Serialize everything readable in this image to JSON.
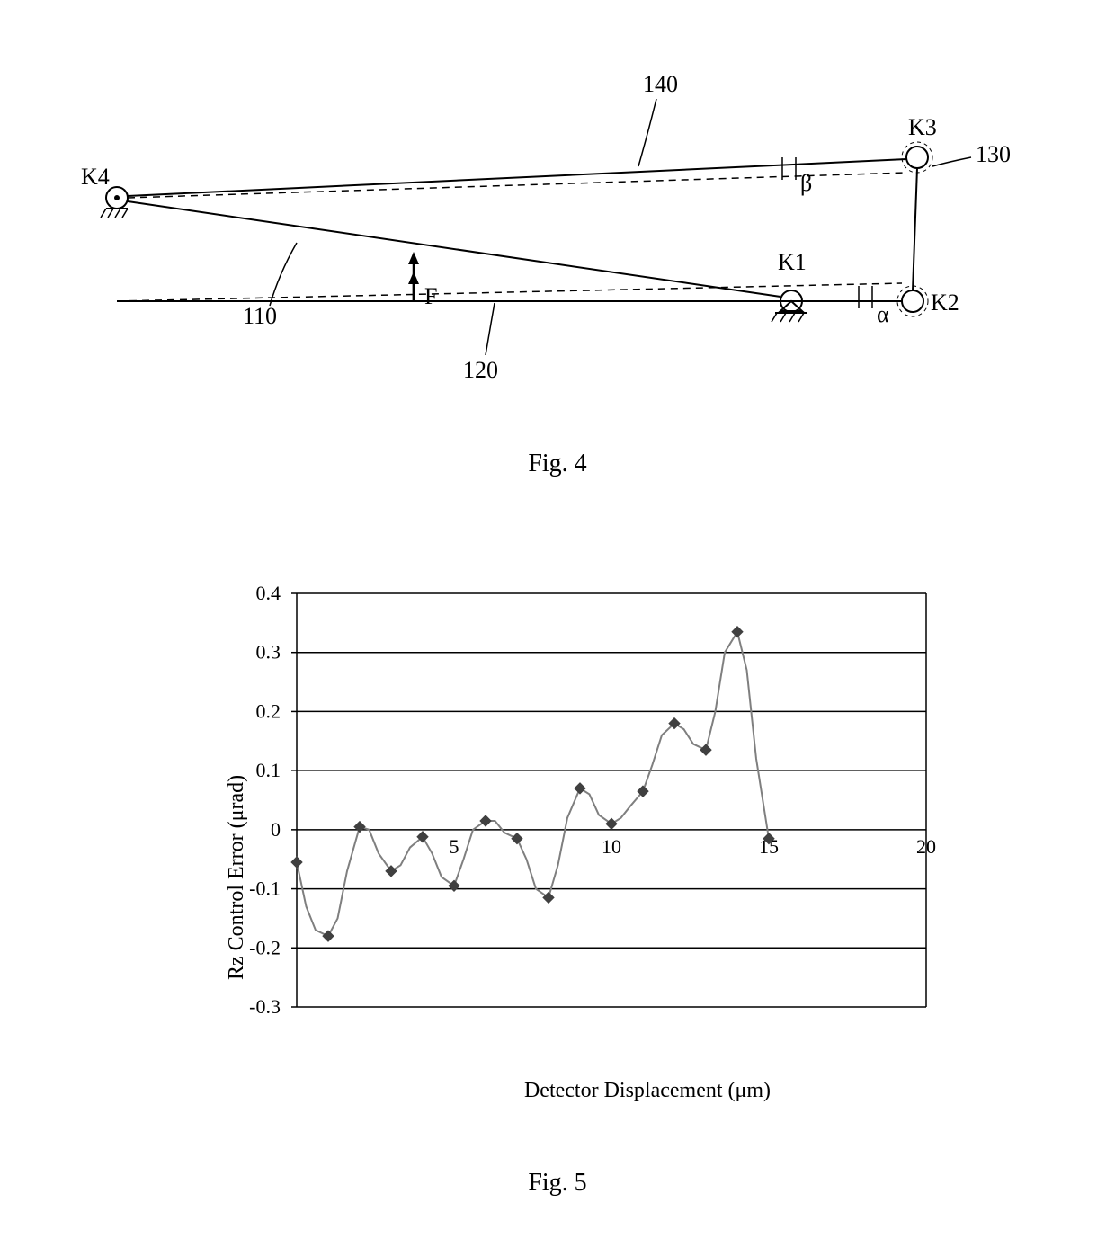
{
  "fig4": {
    "caption": "Fig. 4",
    "labels": {
      "K1": "K1",
      "K2": "K2",
      "K3": "K3",
      "K4": "K4",
      "n110": "110",
      "n120": "120",
      "n130": "130",
      "n140": "140",
      "alpha": "α",
      "beta": "β",
      "F": "F"
    },
    "line_color": "#000000",
    "line_width": 2,
    "dash_pattern": "8,6"
  },
  "fig5": {
    "caption": "Fig. 5",
    "type": "line+marker",
    "xlabel": "Detector Displacement (μm)",
    "ylabel": "Rz Control Error (μrad)",
    "xlim": [
      0,
      20
    ],
    "ylim": [
      -0.3,
      0.4
    ],
    "xticks": [
      5,
      10,
      15,
      20
    ],
    "yticks": [
      -0.3,
      -0.2,
      -0.1,
      0,
      0.1,
      0.2,
      0.3,
      0.4
    ],
    "x": [
      0,
      1,
      2,
      3,
      4,
      5,
      6,
      7,
      8,
      9,
      10,
      11,
      12,
      13,
      14,
      15
    ],
    "y": [
      -0.055,
      -0.18,
      0.005,
      -0.07,
      -0.012,
      -0.095,
      0.015,
      -0.015,
      -0.115,
      0.07,
      0.01,
      0.065,
      0.18,
      0.135,
      0.335,
      -0.015
    ],
    "curve": [
      [
        0,
        -0.055
      ],
      [
        0.3,
        -0.13
      ],
      [
        0.6,
        -0.17
      ],
      [
        1,
        -0.18
      ],
      [
        1.3,
        -0.15
      ],
      [
        1.6,
        -0.07
      ],
      [
        2,
        0.005
      ],
      [
        2.3,
        0.0
      ],
      [
        2.6,
        -0.04
      ],
      [
        3,
        -0.07
      ],
      [
        3.3,
        -0.06
      ],
      [
        3.6,
        -0.03
      ],
      [
        4,
        -0.012
      ],
      [
        4.3,
        -0.04
      ],
      [
        4.6,
        -0.08
      ],
      [
        5,
        -0.095
      ],
      [
        5.3,
        -0.05
      ],
      [
        5.6,
        0.0
      ],
      [
        6,
        0.015
      ],
      [
        6.3,
        0.015
      ],
      [
        6.6,
        -0.005
      ],
      [
        7,
        -0.015
      ],
      [
        7.3,
        -0.05
      ],
      [
        7.6,
        -0.1
      ],
      [
        8,
        -0.115
      ],
      [
        8.3,
        -0.06
      ],
      [
        8.6,
        0.02
      ],
      [
        9,
        0.07
      ],
      [
        9.3,
        0.06
      ],
      [
        9.6,
        0.025
      ],
      [
        10,
        0.01
      ],
      [
        10.3,
        0.02
      ],
      [
        10.6,
        0.04
      ],
      [
        11,
        0.065
      ],
      [
        11.3,
        0.11
      ],
      [
        11.6,
        0.16
      ],
      [
        12,
        0.18
      ],
      [
        12.3,
        0.17
      ],
      [
        12.6,
        0.145
      ],
      [
        13,
        0.135
      ],
      [
        13.3,
        0.2
      ],
      [
        13.6,
        0.3
      ],
      [
        14,
        0.335
      ],
      [
        14.3,
        0.27
      ],
      [
        14.6,
        0.12
      ],
      [
        15,
        -0.015
      ]
    ],
    "background_color": "#ffffff",
    "grid_color": "#000000",
    "line_color": "#7f7f7f",
    "marker_color": "#404040",
    "marker_size": 6,
    "line_width": 2,
    "label_fontsize": 24,
    "tick_fontsize": 22
  }
}
